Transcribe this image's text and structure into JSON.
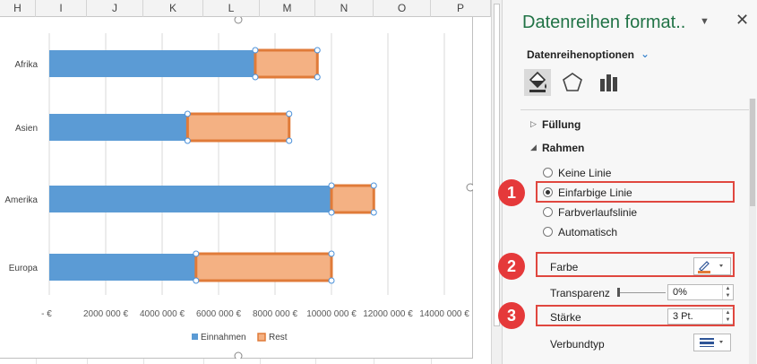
{
  "spreadsheet": {
    "columns": [
      "H",
      "I",
      "J",
      "K",
      "L",
      "M",
      "N",
      "O",
      "P"
    ]
  },
  "chart_data": {
    "type": "bar",
    "orientation": "horizontal",
    "stacked": true,
    "categories": [
      "Afrika",
      "Asien",
      "Amerika",
      "Europa"
    ],
    "series": [
      {
        "name": "Einnahmen",
        "color": "#5b9bd5",
        "values": [
          7300000,
          4900000,
          10000000,
          5200000
        ]
      },
      {
        "name": "Rest",
        "color": "#f4b183",
        "border_color": "#e07b39",
        "values": [
          2200000,
          3600000,
          1500000,
          4800000
        ]
      }
    ],
    "x_ticks": [
      "-   €",
      "2000 000 €",
      "4000 000 €",
      "6000 000 €",
      "8000 000 €",
      "10000 000 €",
      "12000 000 €",
      "14000 000 €"
    ],
    "xlim": [
      0,
      14000000
    ],
    "grid": true,
    "legend_position": "bottom",
    "legend": [
      "Einnahmen",
      "Rest"
    ]
  },
  "pane": {
    "title": "Datenreihen format..",
    "dropdown_icon": "caret-down-icon",
    "close_icon": "close-icon",
    "series_options_label": "Datenreihenoptionen",
    "icons": [
      "fill-line-icon",
      "effects-pentagon-icon",
      "series-options-bar-icon"
    ],
    "fill_section": "Füllung",
    "border_section": "Rahmen",
    "border_options": [
      {
        "label": "Keine Linie",
        "selected": false
      },
      {
        "label": "Einfarbige Linie",
        "selected": true
      },
      {
        "label": "Farbverlaufslinie",
        "selected": false
      },
      {
        "label": "Automatisch",
        "selected": false
      }
    ],
    "color_label": "Farbe",
    "transparency_label": "Transparenz",
    "transparency_value": "0%",
    "width_label": "Stärke",
    "width_value": "3 Pt.",
    "compound_label": "Verbundtyp",
    "accent_color": "#217346",
    "badges": [
      "1",
      "2",
      "3"
    ],
    "badge_color": "#e5393a"
  }
}
